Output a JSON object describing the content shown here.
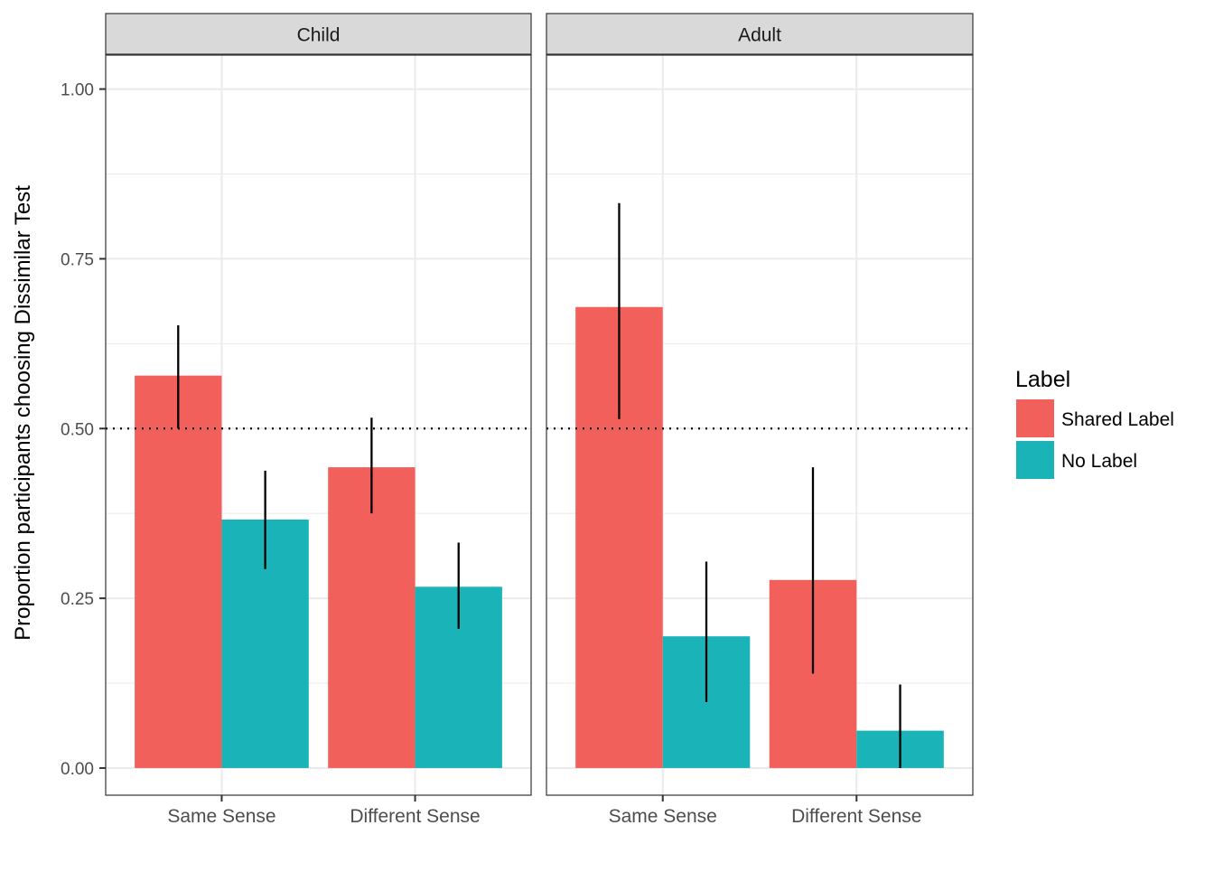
{
  "chart_data": {
    "type": "bar",
    "ylabel": "Proportion participants choosing Dissimilar Test",
    "xlabel": "",
    "ylim": [
      -0.04,
      1.05
    ],
    "y_ticks": [
      "0.00",
      "0.25",
      "0.50",
      "0.75",
      "1.00"
    ],
    "categories": [
      "Same Sense",
      "Different Sense"
    ],
    "reference_line": 0.5,
    "grid": true,
    "legend": {
      "title": "Label",
      "position": "right",
      "entries": [
        {
          "name": "Shared Label",
          "color": "#F2605C"
        },
        {
          "name": "No Label",
          "color": "#1AB4B8"
        }
      ]
    },
    "panels": [
      {
        "title": "Child",
        "series": [
          {
            "name": "Shared Label",
            "values": [
              0.578,
              0.443
            ],
            "err_low": [
              0.5,
              0.375
            ],
            "err_high": [
              0.652,
              0.516
            ]
          },
          {
            "name": "No Label",
            "values": [
              0.366,
              0.267
            ],
            "err_low": [
              0.293,
              0.205
            ],
            "err_high": [
              0.438,
              0.332
            ]
          }
        ]
      },
      {
        "title": "Adult",
        "series": [
          {
            "name": "Shared Label",
            "values": [
              0.679,
              0.277
            ],
            "err_low": [
              0.514,
              0.139
            ],
            "err_high": [
              0.832,
              0.443
            ]
          },
          {
            "name": "No Label",
            "values": [
              0.194,
              0.055
            ],
            "err_low": [
              0.097,
              0.0
            ],
            "err_high": [
              0.304,
              0.123
            ]
          }
        ]
      }
    ]
  }
}
